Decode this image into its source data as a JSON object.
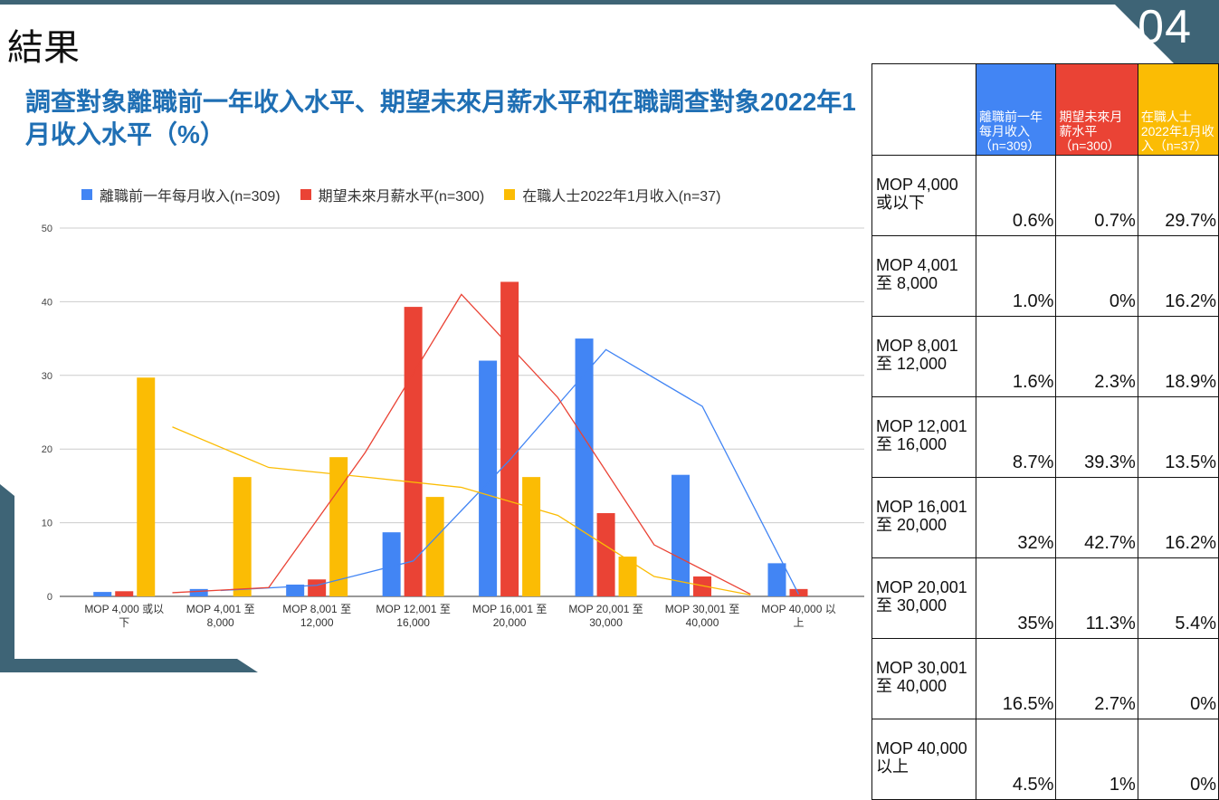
{
  "slide": {
    "section_title": "結果",
    "page_number": "04",
    "chart_title": "調查對象離職前一年收入水平、期望未來月薪水平和在職調查對象2022年1月收入水平（%）"
  },
  "colors": {
    "blue": "#4285f4",
    "red": "#ea4335",
    "yellow": "#fbbc04",
    "accent": "#3e6476"
  },
  "chart_data": {
    "type": "bar",
    "title": "調查對象離職前一年收入水平、期望未來月薪水平和在職調查對象2022年1月收入水平（%）",
    "categories": [
      "MOP 4,000 或以下",
      "MOP 4,001 至 8,000",
      "MOP 8,001 至 12,000",
      "MOP 12,001 至 16,000",
      "MOP 16,001 至 20,000",
      "MOP 20,001 至 30,000",
      "MOP 30,001 至 40,000",
      "MOP 40,000 以上"
    ],
    "series": [
      {
        "name": "離職前一年每月收入(n=309)",
        "color": "#4285f4",
        "values": [
          0.6,
          1.0,
          1.6,
          8.7,
          32,
          35,
          16.5,
          4.5
        ]
      },
      {
        "name": "期望未來月薪水平(n=300)",
        "color": "#ea4335",
        "values": [
          0.7,
          0,
          2.3,
          39.3,
          42.7,
          11.3,
          2.7,
          1
        ]
      },
      {
        "name": "在職人士2022年1月收入(n=37)",
        "color": "#fbbc04",
        "values": [
          29.7,
          16.2,
          18.9,
          13.5,
          16.2,
          5.4,
          0,
          0
        ]
      }
    ],
    "trendlines": [
      {
        "series": "離職前一年每月收入(n=309)",
        "color": "#4285f4",
        "x": [
          1.5,
          2.5,
          3.5,
          4.5,
          5.5,
          6.5,
          7.5
        ],
        "values": [
          0.8,
          1.5,
          4.8,
          18.5,
          33.5,
          25.8,
          0.3
        ]
      },
      {
        "series": "期望未來月薪水平(n=300)",
        "color": "#ea4335",
        "x": [
          1.0,
          2.0,
          3.0,
          4.0,
          5.0,
          6.0,
          7.0
        ],
        "values": [
          0.5,
          1.2,
          19.5,
          41.0,
          27.0,
          7.0,
          0.3
        ]
      },
      {
        "series": "在職人士2022年1月收入(n=37)",
        "color": "#fbbc04",
        "x": [
          1.0,
          2.0,
          3.0,
          4.0,
          5.0,
          6.0,
          7.0
        ],
        "values": [
          23.0,
          17.5,
          16.2,
          14.8,
          11.0,
          2.7,
          0.2
        ]
      }
    ],
    "ylim": [
      0,
      50
    ],
    "yticks": [
      0,
      10,
      20,
      30,
      40,
      50
    ],
    "xlabel": "",
    "ylabel": "",
    "legend_position": "top",
    "grid": true
  },
  "table": {
    "headers": [
      "離職前一年每月收入（n=309）",
      "期望未來月薪水平（n=300）",
      "在職人士2022年1月收入（n=37）"
    ],
    "rows": [
      {
        "label_lines": [
          "MOP 4,000",
          "或以下"
        ],
        "values": [
          "0.6%",
          "0.7%",
          "29.7%"
        ]
      },
      {
        "label_lines": [
          "MOP 4,001",
          "至 8,000"
        ],
        "values": [
          "1.0%",
          "0%",
          "16.2%"
        ]
      },
      {
        "label_lines": [
          "MOP 8,001",
          "至 12,000"
        ],
        "values": [
          "1.6%",
          "2.3%",
          "18.9%"
        ]
      },
      {
        "label_lines": [
          "MOP 12,001",
          "至 16,000"
        ],
        "values": [
          "8.7%",
          "39.3%",
          "13.5%"
        ]
      },
      {
        "label_lines": [
          "MOP 16,001",
          "至 20,000"
        ],
        "values": [
          "32%",
          "42.7%",
          "16.2%"
        ]
      },
      {
        "label_lines": [
          "MOP 20,001",
          "至 30,000"
        ],
        "values": [
          "35%",
          "11.3%",
          "5.4%"
        ]
      },
      {
        "label_lines": [
          "MOP 30,001",
          "至 40,000"
        ],
        "values": [
          "16.5%",
          "2.7%",
          "0%"
        ]
      },
      {
        "label_lines": [
          "MOP 40,000",
          "以上"
        ],
        "values": [
          "4.5%",
          "1%",
          "0%"
        ]
      }
    ]
  }
}
